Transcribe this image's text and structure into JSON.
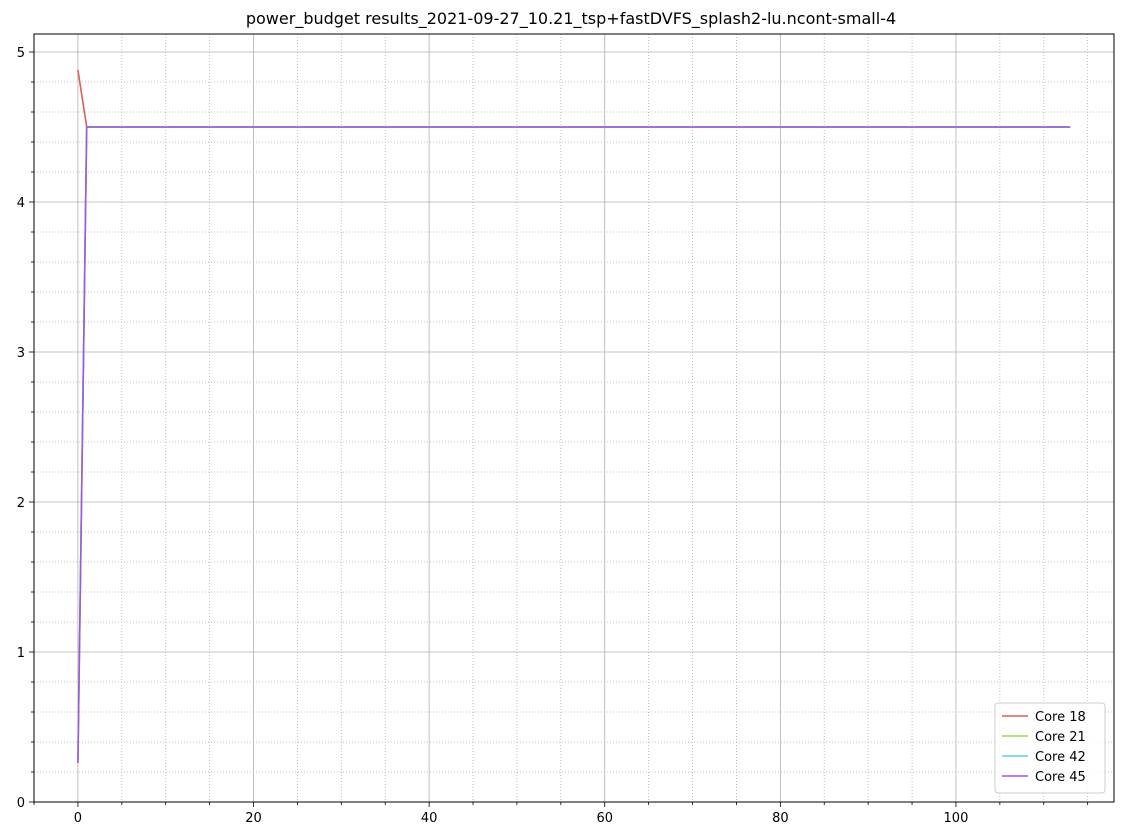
{
  "chart_data": {
    "type": "line",
    "title": "power_budget results_2021-09-27_10.21_tsp+fastDVFS_splash2-lu.ncont-small-4",
    "xlabel": "",
    "ylabel": "",
    "xlim": [
      -5,
      118
    ],
    "ylim": [
      0,
      5.12
    ],
    "x_ticks": [
      0,
      20,
      40,
      60,
      80,
      100
    ],
    "y_ticks": [
      0,
      1,
      2,
      3,
      4,
      5
    ],
    "x_minor_step": 5,
    "y_minor_step": 0.2,
    "grid": true,
    "legend_position": "lower-right",
    "series": [
      {
        "name": "Core 18",
        "color": "#db5f57",
        "points": [
          [
            0,
            4.88
          ],
          [
            1,
            4.5
          ],
          [
            113,
            4.5
          ]
        ]
      },
      {
        "name": "Core 21",
        "color": "#91db57",
        "points": [
          [
            0,
            0.26
          ],
          [
            1,
            4.5
          ],
          [
            113,
            4.5
          ]
        ]
      },
      {
        "name": "Core 42",
        "color": "#57d3db",
        "points": [
          [
            0,
            0.26
          ],
          [
            1,
            4.5
          ],
          [
            113,
            4.5
          ]
        ]
      },
      {
        "name": "Core 45",
        "color": "#a157db",
        "points": [
          [
            0,
            0.26
          ],
          [
            1,
            4.5
          ],
          [
            113,
            4.5
          ]
        ]
      }
    ]
  }
}
